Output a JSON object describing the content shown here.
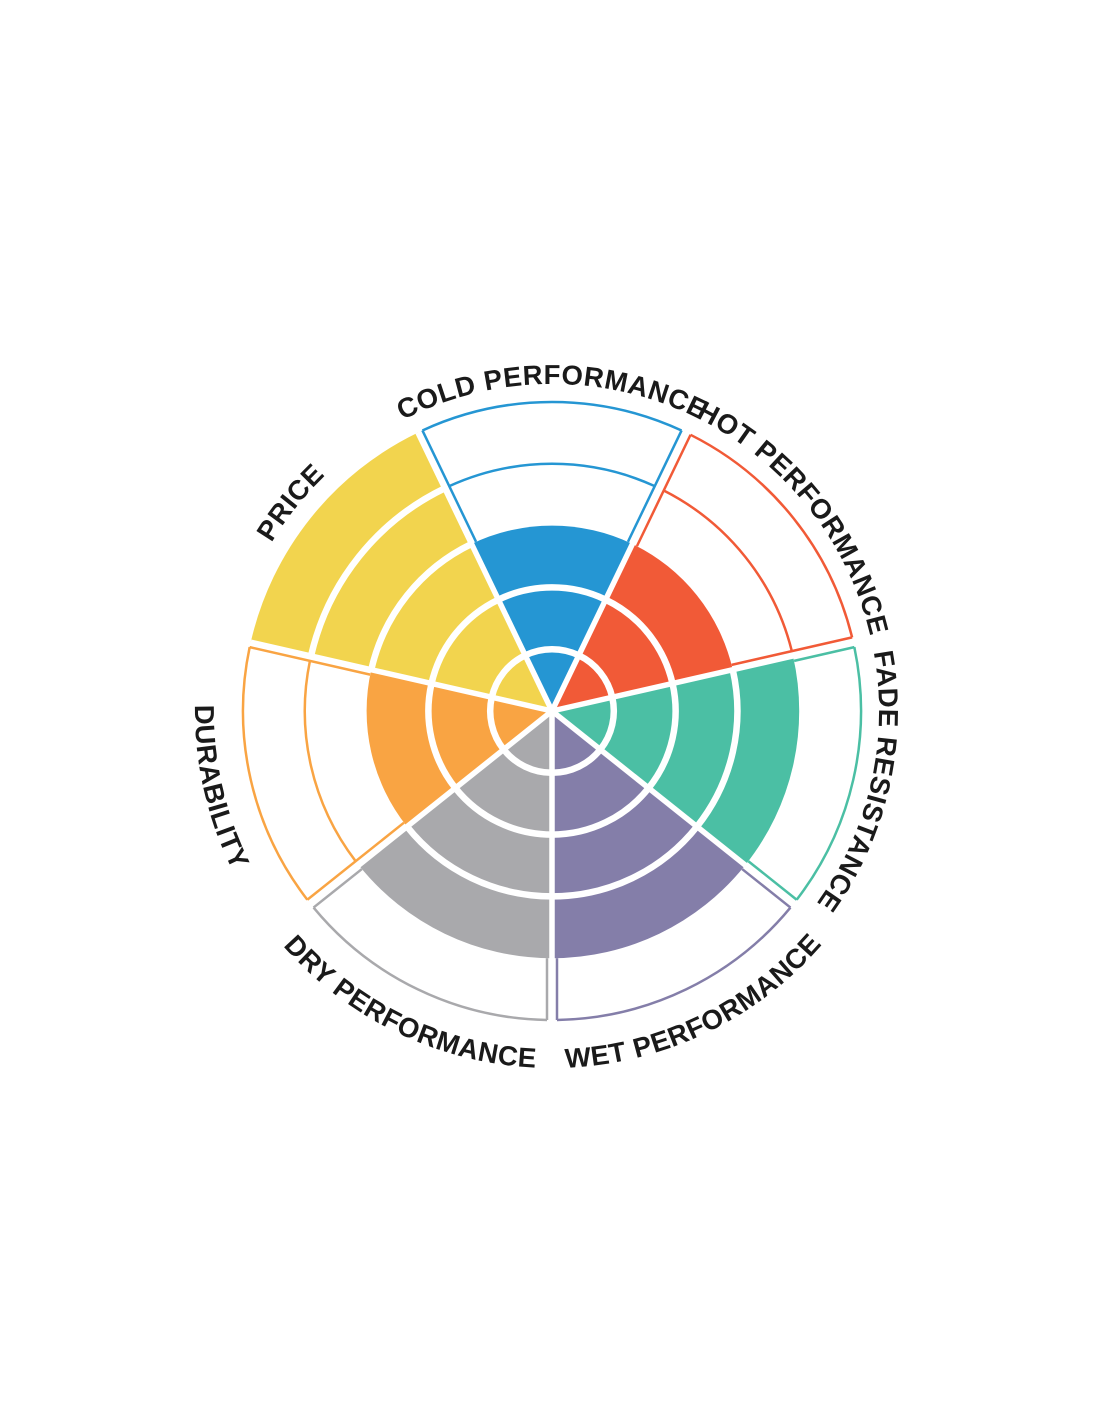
{
  "page": {
    "background_color": "#ffffff"
  },
  "chart_data": {
    "type": "polar",
    "subtype": "sector-level-wheel",
    "title": "",
    "rings": 5,
    "max_level": 5,
    "level_min": 0,
    "grid": true,
    "legend_position": "none",
    "label_color": "#1a1a1a",
    "grid_color": "#ffffff",
    "categories": [
      {
        "label": "COLD PERFORMANCE",
        "value": 3,
        "color": "#2596d3",
        "label_flow": "clockwise"
      },
      {
        "label": "HOT PERFORMANCE",
        "value": 3,
        "color": "#f15a37",
        "label_flow": "clockwise"
      },
      {
        "label": "FADE RESISTANCE",
        "value": 4,
        "color": "#4bbfa4",
        "label_flow": "clockwise"
      },
      {
        "label": "WET PERFORMANCE",
        "value": 4,
        "color": "#847ea9",
        "label_flow": "counterclockwise"
      },
      {
        "label": "DRY PERFORMANCE",
        "value": 4,
        "color": "#a9a9ac",
        "label_flow": "counterclockwise"
      },
      {
        "label": "DURABILITY",
        "value": 3,
        "color": "#f9a443",
        "label_flow": "counterclockwise"
      },
      {
        "label": "PRICE",
        "value": 5,
        "color": "#f2d44e",
        "label_flow": "clockwise"
      }
    ]
  }
}
